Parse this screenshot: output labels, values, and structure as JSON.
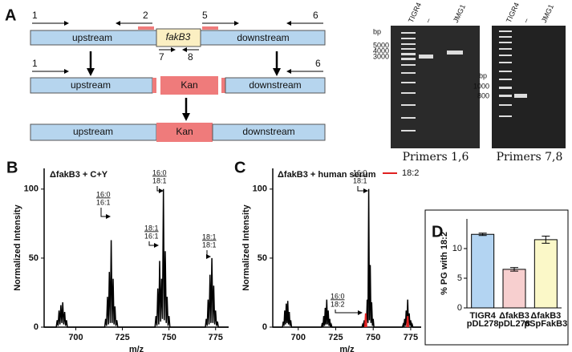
{
  "diagram": {
    "label": "A",
    "rows": [
      [
        "upstream",
        "fakB3",
        "downstream"
      ],
      [
        "upstream",
        "Kan",
        "downstream"
      ],
      [
        "upstream",
        "Kan",
        "downstream"
      ]
    ],
    "primers": [
      "1",
      "2",
      "5",
      "6",
      "7",
      "8",
      "1",
      "6"
    ]
  },
  "gels": [
    {
      "lanes": [
        "TIGR4",
        "–",
        "JMG1"
      ],
      "unit": "bp",
      "markers": [
        "5000",
        "4000",
        "3000"
      ],
      "caption": "Primers 1,6"
    },
    {
      "lanes": [
        "TIGR4",
        "–",
        "JMG1"
      ],
      "unit": "bp",
      "markers": [
        "1000",
        "800"
      ],
      "caption": "Primers 7,8"
    }
  ],
  "chart_data": [
    {
      "type": "line",
      "label": "B",
      "title": "ΔfakB3 + C+Y",
      "xlabel": "m/z",
      "ylabel": "Normalized Intensity",
      "x": [
        683,
        689.5,
        690,
        690.5,
        691,
        691.5,
        692,
        692.5,
        693,
        693.5,
        694,
        694.5,
        695,
        695.5,
        715.5,
        716,
        716.5,
        717,
        717.5,
        718,
        718.5,
        719,
        719.5,
        720,
        720.5,
        721,
        721.5,
        722,
        722.5,
        742.5,
        743,
        743.5,
        744,
        744.5,
        745,
        745.5,
        746,
        746.5,
        747,
        747.5,
        748,
        748.5,
        749,
        749.5,
        750,
        750.5,
        769.5,
        770,
        770.5,
        771,
        771.5,
        772,
        772.5,
        773,
        773.5,
        774,
        774.5,
        775,
        775.5,
        776,
        776.5,
        782
      ],
      "series": [
        {
          "color": "#000000",
          "values": [
            0,
            0,
            5,
            1,
            12,
            2,
            16,
            3,
            18,
            2,
            11,
            1,
            5,
            0,
            0,
            6,
            1,
            22,
            2,
            40,
            3,
            63,
            3,
            35,
            2,
            15,
            1,
            5,
            0,
            0,
            8,
            1,
            28,
            2,
            48,
            4,
            35,
            6,
            100,
            5,
            55,
            3,
            22,
            1,
            8,
            0,
            0,
            6,
            1,
            20,
            2,
            38,
            3,
            50,
            3,
            30,
            2,
            12,
            1,
            4,
            0,
            0
          ]
        }
      ],
      "annotations": [
        [
          "16:0",
          "16:1"
        ],
        [
          "16:0",
          "18:1"
        ],
        [
          "18:1",
          "16:1"
        ],
        [
          "18:1",
          "18:1"
        ]
      ],
      "xlim": [
        683,
        782
      ],
      "ylim": [
        0,
        115
      ],
      "xticks": [
        700,
        725,
        750,
        775
      ],
      "yticks": [
        0,
        50,
        100
      ]
    },
    {
      "type": "line",
      "label": "C",
      "title": "ΔfakB3 + human serum",
      "xlabel": "m/z",
      "ylabel": "Normalized Intensity",
      "x": [
        683,
        689.5,
        690,
        690.5,
        691,
        691.5,
        692,
        692.5,
        693,
        693.5,
        694,
        694.5,
        695,
        695.5,
        715.5,
        716,
        716.5,
        717,
        717.5,
        718,
        718.5,
        719,
        719.5,
        720,
        720.5,
        721,
        721.5,
        722,
        722.5,
        742.5,
        743,
        743.5,
        744,
        744.5,
        745,
        745.5,
        746,
        746.5,
        747,
        747.5,
        748,
        748.5,
        749,
        749.5,
        750,
        750.5,
        769.5,
        770,
        770.5,
        771,
        771.5,
        772,
        772.5,
        773,
        773.5,
        774,
        774.5,
        775,
        775.5,
        776,
        776.5,
        782
      ],
      "series": [
        {
          "color": "#000000",
          "values": [
            0,
            0,
            4,
            1,
            12,
            2,
            17,
            3,
            19,
            2,
            11,
            1,
            5,
            0,
            0,
            3,
            0,
            8,
            1,
            14,
            2,
            20,
            2,
            12,
            1,
            6,
            0,
            2,
            0,
            0,
            2,
            0,
            5,
            0,
            7,
            1,
            20,
            3,
            100,
            5,
            45,
            3,
            18,
            1,
            6,
            0,
            0,
            2,
            0,
            6,
            1,
            12,
            2,
            20,
            2,
            10,
            1,
            5,
            0,
            2,
            0,
            0
          ]
        },
        {
          "name": "18:2",
          "color": "#e02020",
          "values": [
            null,
            null,
            null,
            null,
            null,
            null,
            null,
            null,
            null,
            null,
            null,
            null,
            null,
            null,
            null,
            null,
            null,
            null,
            null,
            null,
            null,
            null,
            null,
            null,
            null,
            null,
            null,
            null,
            null,
            null,
            null,
            null,
            null,
            0,
            10,
            0,
            null,
            null,
            null,
            null,
            null,
            null,
            null,
            null,
            null,
            null,
            null,
            null,
            null,
            null,
            null,
            null,
            0,
            8,
            0,
            null,
            null,
            null,
            null,
            null,
            null,
            null
          ]
        }
      ],
      "annotations": [
        [
          "16:0",
          "18:1"
        ],
        [
          "16:0",
          "18:2"
        ]
      ],
      "xlim": [
        683,
        782
      ],
      "ylim": [
        0,
        115
      ],
      "xticks": [
        700,
        725,
        750,
        775
      ],
      "yticks": [
        0,
        50,
        100
      ]
    },
    {
      "type": "bar",
      "label": "D",
      "ylabel": "% PG with 18:2",
      "categories": [
        [
          "TIGR4",
          "pDL278"
        ],
        [
          "ΔfakB3",
          "pDL278"
        ],
        [
          "ΔfakB3",
          "pSpFakB3"
        ]
      ],
      "values": [
        12.4,
        6.5,
        11.5
      ],
      "errors": [
        0.2,
        0.3,
        0.6
      ],
      "colors": [
        "#b3d4f2",
        "#f7cfcf",
        "#fbf8c8"
      ],
      "ylim": [
        0,
        15
      ],
      "yticks": [
        0,
        5,
        10
      ]
    }
  ]
}
